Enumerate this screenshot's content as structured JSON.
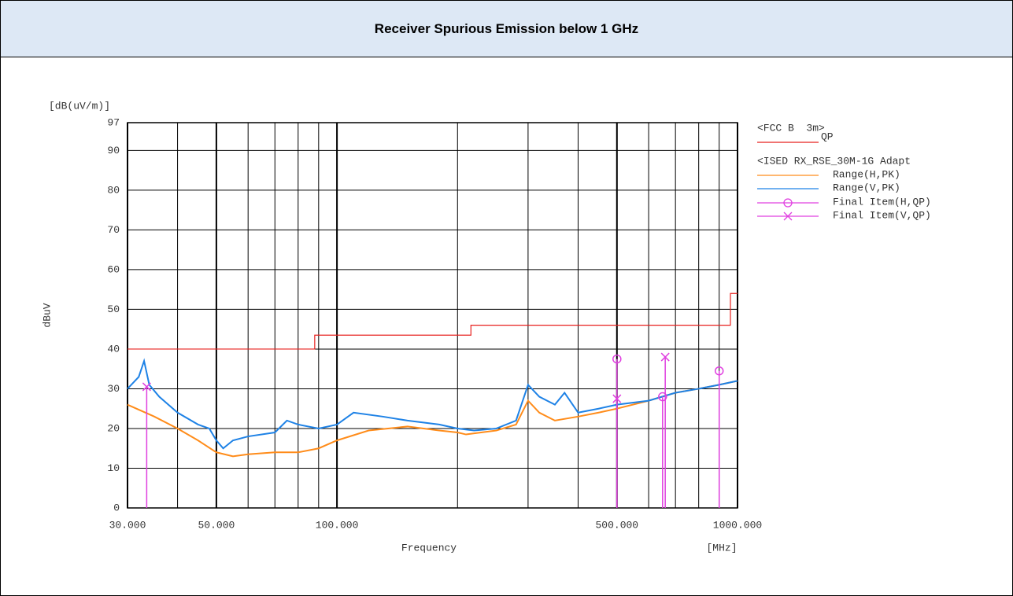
{
  "title": "Receiver Spurious Emission below 1 GHz",
  "chart_data": {
    "type": "line",
    "y_unit": "[dB(uV/m)]",
    "y_label": "dBuV",
    "x_label": "Frequency",
    "x_unit": "[MHz]",
    "x_scale": "log",
    "xlim": [
      30,
      1000
    ],
    "xticks": [
      {
        "value": 30,
        "label": "30.000"
      },
      {
        "value": 50,
        "label": "50.000"
      },
      {
        "value": 100,
        "label": "100.000"
      },
      {
        "value": 500,
        "label": "500.000"
      },
      {
        "value": 1000,
        "label": "1000.000"
      }
    ],
    "xminor": [
      40,
      60,
      70,
      80,
      90,
      200,
      300,
      400,
      600,
      700,
      800,
      900
    ],
    "ylim": [
      0,
      97
    ],
    "yticks": [
      0,
      10,
      20,
      30,
      40,
      50,
      60,
      70,
      80,
      90,
      97
    ],
    "grid": true,
    "legend_groups": [
      "<FCC B  3m>",
      "<ISED RX_RSE_30M-1G Adapt"
    ],
    "series": [
      {
        "name": "QP",
        "color": "#e8201e",
        "x": [
          30,
          88,
          88,
          216,
          216,
          960,
          960,
          1000
        ],
        "values": [
          40,
          40,
          43.5,
          43.5,
          46,
          46,
          54,
          54
        ]
      },
      {
        "name": "Range(H,PK)",
        "color": "#ff8c1a",
        "x": [
          30,
          35,
          40,
          45,
          50,
          55,
          60,
          70,
          80,
          90,
          100,
          120,
          150,
          180,
          200,
          210,
          250,
          280,
          300,
          320,
          350,
          400,
          450,
          500,
          600,
          700,
          800,
          900,
          1000
        ],
        "values": [
          26,
          23,
          20,
          17,
          14,
          13,
          13.5,
          14,
          14,
          15,
          17,
          19.5,
          20.5,
          19.5,
          19,
          18.5,
          19.5,
          21,
          27,
          24,
          22,
          23,
          24,
          25,
          27,
          29,
          30,
          31,
          32
        ]
      },
      {
        "name": "Range(V,PK)",
        "color": "#1e82e6",
        "x": [
          30,
          32,
          33,
          34,
          36,
          40,
          45,
          48,
          50,
          52,
          55,
          60,
          70,
          75,
          80,
          90,
          100,
          110,
          130,
          150,
          180,
          200,
          220,
          250,
          280,
          300,
          320,
          350,
          370,
          400,
          450,
          500,
          600,
          700,
          800,
          900,
          1000
        ],
        "values": [
          30,
          33,
          37,
          31,
          28,
          24,
          21,
          20,
          17,
          15,
          17,
          18,
          19,
          22,
          21,
          20,
          21,
          24,
          23,
          22,
          21,
          20,
          19.5,
          20,
          22,
          31,
          28,
          26,
          29,
          24,
          25,
          26,
          27,
          29,
          30,
          31,
          32
        ]
      },
      {
        "name": "Final Item(H,QP)",
        "color": "#e040e0",
        "marker": "circle",
        "stem": true,
        "x": [
          500,
          650,
          900
        ],
        "values": [
          37.5,
          28,
          34.5
        ]
      },
      {
        "name": "Final Item(V,QP)",
        "color": "#e040e0",
        "marker": "x",
        "stem": true,
        "x": [
          33.5,
          500,
          660
        ],
        "values": [
          30.5,
          27.5,
          38
        ]
      }
    ]
  }
}
